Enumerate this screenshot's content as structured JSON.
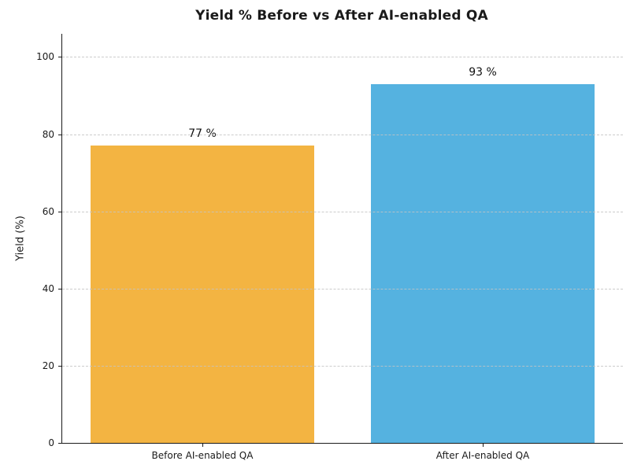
{
  "chart_data": {
    "type": "bar",
    "title": "Yield % Before vs After AI-enabled QA",
    "xlabel": "",
    "ylabel": "Yield (%)",
    "categories": [
      "Before AI-enabled QA",
      "After AI-enabled QA"
    ],
    "values": [
      77,
      93
    ],
    "value_labels": [
      "77 %",
      "93 %"
    ],
    "bar_colors": [
      "#F3B442",
      "#55B2E0"
    ],
    "ylim": [
      0,
      106
    ],
    "yticks": [
      0,
      20,
      40,
      60,
      80,
      100
    ],
    "grid": "horizontal-dashed",
    "legend_position": "none",
    "bar_width_fraction": 0.8
  },
  "colors": {
    "background": "#ffffff",
    "spine": "#1a1a1a",
    "gridline": "#c8c8c8",
    "text": "#1a1a1a",
    "bar_before": "#F3B442",
    "bar_after": "#55B2E0"
  }
}
